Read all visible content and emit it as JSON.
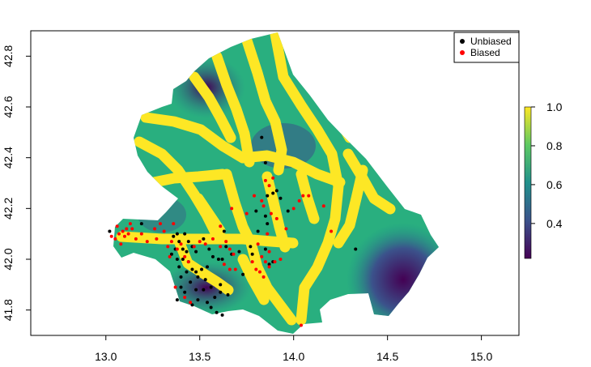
{
  "chart_data": {
    "type": "scatter",
    "title": "",
    "xlabel": "",
    "ylabel": "",
    "xlim": [
      12.6,
      15.2
    ],
    "ylim": [
      41.7,
      42.9
    ],
    "xticks": [
      "13.0",
      "13.5",
      "14.0",
      "14.5",
      "15.0"
    ],
    "xtick_values": [
      13.0,
      13.5,
      14.0,
      14.5,
      15.0
    ],
    "yticks": [
      "41.8",
      "42.0",
      "42.2",
      "42.4",
      "42.6",
      "42.8"
    ],
    "ytick_values": [
      41.8,
      42.0,
      42.2,
      42.4,
      42.6,
      42.8
    ],
    "grid": false,
    "legend_position": "top-right",
    "background_raster": "suitability surface (viridis palette) over the Abruzzo region",
    "colorbar": {
      "ticks": [
        "0.4",
        "0.6",
        "0.8",
        "1.0"
      ],
      "tick_values": [
        0.4,
        0.6,
        0.8,
        1.0
      ],
      "range": [
        0.22,
        1.0
      ],
      "palette": [
        "#440154",
        "#3b528b",
        "#21918c",
        "#5ec962",
        "#fde725"
      ]
    },
    "series": [
      {
        "name": "Unbiased",
        "color": "#000000",
        "points": [
          [
            13.02,
            42.11
          ],
          [
            13.19,
            42.14
          ],
          [
            13.36,
            42.09
          ],
          [
            13.38,
            42.1
          ],
          [
            13.42,
            42.1
          ],
          [
            13.44,
            42.07
          ],
          [
            13.39,
            42.07
          ],
          [
            13.46,
            42.05
          ],
          [
            13.37,
            42.04
          ],
          [
            13.41,
            42.04
          ],
          [
            13.43,
            42.03
          ],
          [
            13.48,
            42.03
          ],
          [
            13.35,
            42.02
          ],
          [
            13.38,
            42.0
          ],
          [
            13.41,
            42.0
          ],
          [
            13.44,
            41.99
          ],
          [
            13.39,
            41.97
          ],
          [
            13.46,
            41.96
          ],
          [
            13.48,
            41.95
          ],
          [
            13.51,
            41.96
          ],
          [
            13.54,
            41.97
          ],
          [
            13.43,
            41.95
          ],
          [
            13.49,
            41.93
          ],
          [
            13.53,
            41.92
          ],
          [
            13.4,
            41.93
          ],
          [
            13.45,
            41.91
          ],
          [
            13.4,
            41.89
          ],
          [
            13.42,
            41.87
          ],
          [
            13.48,
            41.88
          ],
          [
            13.52,
            41.88
          ],
          [
            13.56,
            41.89
          ],
          [
            13.61,
            41.9
          ],
          [
            13.61,
            41.87
          ],
          [
            13.65,
            41.86
          ],
          [
            13.58,
            41.85
          ],
          [
            13.49,
            41.84
          ],
          [
            13.46,
            41.82
          ],
          [
            13.54,
            41.83
          ],
          [
            13.56,
            41.81
          ],
          [
            13.59,
            41.79
          ],
          [
            13.62,
            41.78
          ],
          [
            13.38,
            41.84
          ],
          [
            13.6,
            42.0
          ],
          [
            13.62,
            42.0
          ],
          [
            13.55,
            42.04
          ],
          [
            13.57,
            42.01
          ],
          [
            13.67,
            42.02
          ],
          [
            13.64,
            42.05
          ],
          [
            13.71,
            42.03
          ],
          [
            13.77,
            42.05
          ],
          [
            13.78,
            42.02
          ],
          [
            13.85,
            42.04
          ],
          [
            13.87,
            41.98
          ],
          [
            13.89,
            41.99
          ],
          [
            13.8,
            42.19
          ],
          [
            13.83,
            42.48
          ],
          [
            13.85,
            42.38
          ],
          [
            13.86,
            42.25
          ],
          [
            13.89,
            42.26
          ],
          [
            13.91,
            42.27
          ],
          [
            13.93,
            42.24
          ],
          [
            13.97,
            42.19
          ],
          [
            13.85,
            42.17
          ],
          [
            14.33,
            42.04
          ],
          [
            13.81,
            42.11
          ],
          [
            13.86,
            42.14
          ],
          [
            13.73,
            41.94
          ],
          [
            13.52,
            42.08
          ],
          [
            13.63,
            42.11
          ]
        ]
      },
      {
        "name": "Biased",
        "color": "#ff0000",
        "points": [
          [
            13.03,
            42.09
          ],
          [
            13.05,
            42.08
          ],
          [
            13.07,
            42.1
          ],
          [
            13.09,
            42.11
          ],
          [
            13.11,
            42.12
          ],
          [
            13.1,
            42.09
          ],
          [
            13.12,
            42.1
          ],
          [
            13.14,
            42.12
          ],
          [
            13.06,
            42.13
          ],
          [
            13.13,
            42.14
          ],
          [
            13.08,
            42.06
          ],
          [
            13.16,
            42.08
          ],
          [
            13.19,
            42.1
          ],
          [
            13.22,
            42.07
          ],
          [
            13.27,
            42.08
          ],
          [
            13.31,
            42.11
          ],
          [
            13.33,
            42.05
          ],
          [
            13.35,
            42.07
          ],
          [
            13.38,
            42.04
          ],
          [
            13.4,
            42.06
          ],
          [
            13.34,
            42.01
          ],
          [
            13.29,
            42.14
          ],
          [
            13.26,
            42.12
          ],
          [
            13.36,
            42.14
          ],
          [
            13.42,
            42.01
          ],
          [
            13.44,
            41.99
          ],
          [
            13.47,
            42.05
          ],
          [
            13.5,
            42.07
          ],
          [
            13.53,
            42.06
          ],
          [
            13.57,
            42.08
          ],
          [
            13.61,
            42.05
          ],
          [
            13.64,
            42.07
          ],
          [
            13.66,
            42.04
          ],
          [
            13.68,
            42.02
          ],
          [
            13.63,
            41.98
          ],
          [
            13.66,
            41.96
          ],
          [
            13.69,
            41.96
          ],
          [
            13.61,
            42.13
          ],
          [
            13.67,
            42.2
          ],
          [
            13.75,
            42.18
          ],
          [
            13.79,
            42.25
          ],
          [
            13.83,
            42.23
          ],
          [
            13.85,
            42.31
          ],
          [
            13.87,
            42.29
          ],
          [
            13.89,
            42.32
          ],
          [
            13.84,
            42.21
          ],
          [
            13.88,
            42.18
          ],
          [
            13.91,
            42.16
          ],
          [
            13.86,
            42.1
          ],
          [
            13.81,
            42.06
          ],
          [
            13.83,
            42.01
          ],
          [
            13.85,
            41.99
          ],
          [
            13.87,
            41.97
          ],
          [
            13.9,
            41.99
          ],
          [
            13.93,
            42.0
          ],
          [
            13.8,
            41.96
          ],
          [
            13.82,
            41.95
          ],
          [
            13.78,
            41.99
          ],
          [
            13.84,
            41.93
          ],
          [
            13.87,
            42.03
          ],
          [
            13.96,
            42.12
          ],
          [
            14.0,
            42.2
          ],
          [
            14.03,
            42.23
          ],
          [
            14.05,
            42.25
          ],
          [
            14.08,
            42.25
          ],
          [
            14.16,
            42.21
          ],
          [
            14.2,
            42.11
          ],
          [
            14.04,
            41.74
          ],
          [
            13.37,
            41.89
          ],
          [
            13.42,
            41.85
          ],
          [
            13.45,
            41.83
          ]
        ]
      }
    ]
  }
}
